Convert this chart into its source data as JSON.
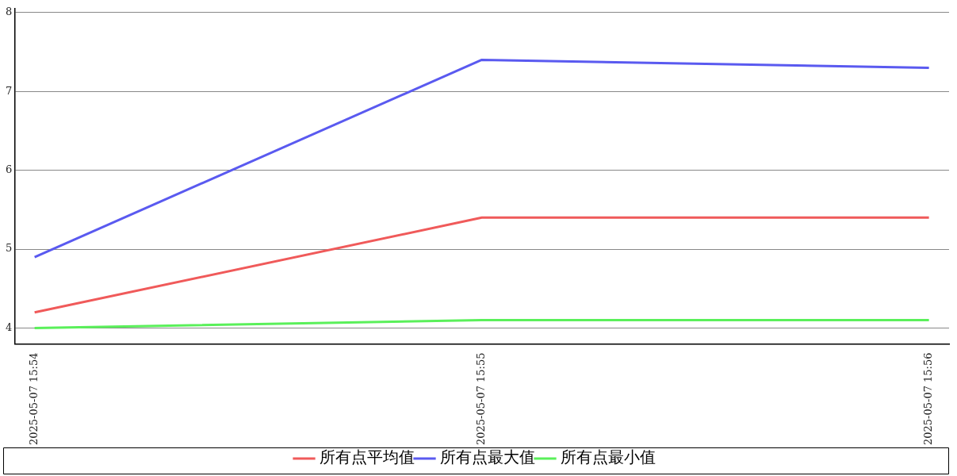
{
  "chart_data": {
    "type": "line",
    "categories": [
      "2025-05-07 15:54",
      "2025-05-07 15:55",
      "2025-05-07 15:56"
    ],
    "series": [
      {
        "name": "所有点平均值",
        "color": "#f05a5a",
        "values": [
          4.2,
          5.4,
          5.4
        ]
      },
      {
        "name": "所有点最大值",
        "color": "#5a5af0",
        "values": [
          4.9,
          7.4,
          7.3
        ]
      },
      {
        "name": "所有点最小值",
        "color": "#5af05a",
        "values": [
          4.0,
          4.1,
          4.1
        ]
      }
    ],
    "ylim": [
      3.8,
      8.05
    ],
    "yticks": [
      4,
      5,
      6,
      7,
      8
    ],
    "grid": "y",
    "legend": "bottom",
    "marker": "none",
    "line_style": "solid"
  }
}
